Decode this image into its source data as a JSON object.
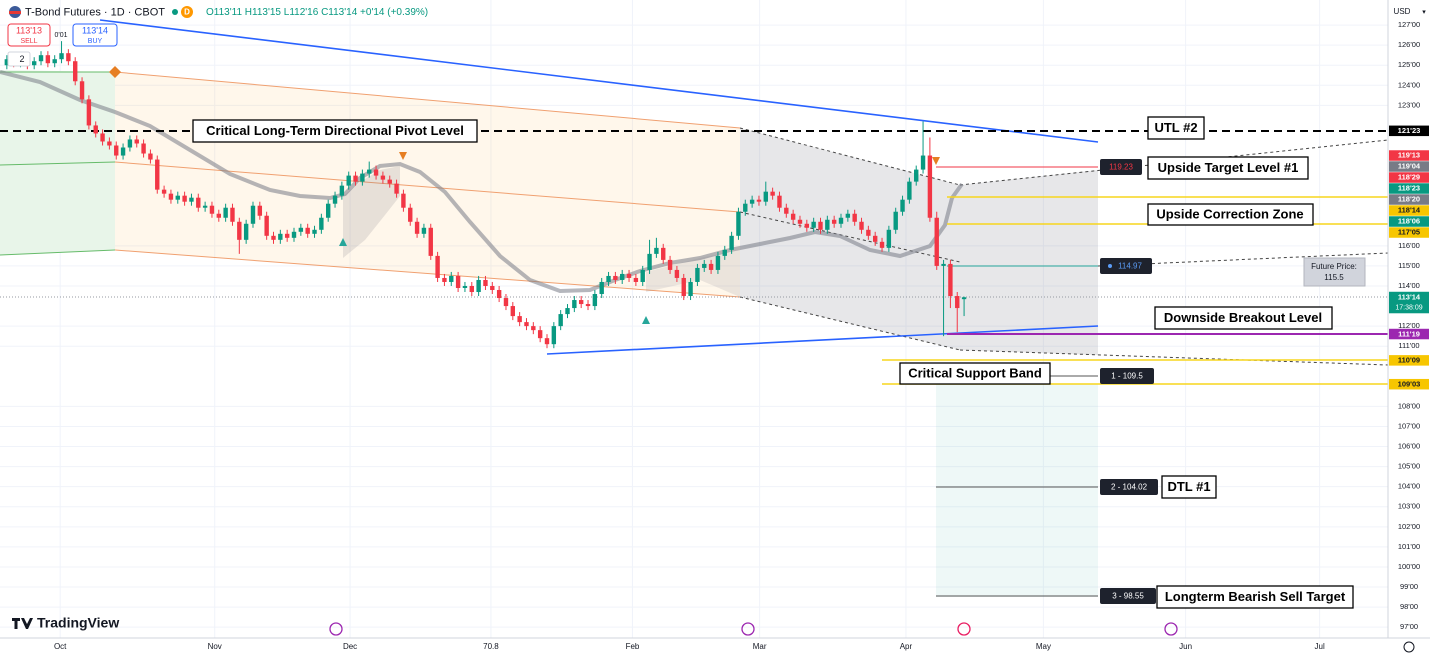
{
  "header": {
    "symbol": "T-Bond Futures · 1D · CBOT",
    "badge": "D",
    "ohlc": "O113'11 H113'15 L112'16 C113'14 +0'14 (+0.39%)",
    "sell_price": "113'13",
    "sell": "SELL",
    "buy_price": "113'14",
    "buy": "BUY",
    "spread": "0'01",
    "indicators": "2"
  },
  "currency": "USD",
  "logo": "TradingView",
  "chart_data": {
    "type": "candlestick",
    "xlim": [
      -1,
      202
    ],
    "ylim": [
      96.46,
      128.25
    ],
    "xticks": [
      {
        "value": 7.8,
        "label": "Oct"
      },
      {
        "value": 30.4,
        "label": "Nov"
      },
      {
        "value": 50.2,
        "label": "Dec"
      },
      70.8,
      {
        "value": 91.5,
        "label": "Feb"
      },
      {
        "value": 110.1,
        "label": "Mar"
      },
      {
        "value": 131.5,
        "label": "Apr"
      },
      {
        "value": 151.6,
        "label": "May"
      },
      {
        "value": 172.4,
        "label": "Jun"
      },
      {
        "value": 192,
        "label": "Jul"
      }
    ],
    "yticks": [
      {
        "value": 127,
        "label": "127'00"
      },
      {
        "value": 126,
        "label": "126'00"
      },
      {
        "value": 125,
        "label": "125'00"
      },
      {
        "value": 124,
        "label": "124'00"
      },
      {
        "value": 123,
        "label": "123'00"
      },
      {
        "value": 116,
        "label": "116'00"
      },
      {
        "value": 115,
        "label": "115'00"
      },
      {
        "value": 114,
        "label": "114'00"
      },
      {
        "value": 112,
        "label": "112'00"
      },
      {
        "value": 111,
        "label": "111'00"
      },
      {
        "value": 108,
        "label": "108'00"
      },
      {
        "value": 107,
        "label": "107'00"
      },
      {
        "value": 106,
        "label": "106'00"
      },
      {
        "value": 105,
        "label": "105'00"
      },
      {
        "value": 104,
        "label": "104'00"
      },
      {
        "value": 103,
        "label": "103'00"
      },
      {
        "value": 102,
        "label": "102'00"
      },
      {
        "value": 101,
        "label": "101'00"
      },
      {
        "value": 100,
        "label": "100'00"
      },
      {
        "value": 99,
        "label": "99'00"
      },
      {
        "value": 98,
        "label": "98'00"
      },
      {
        "value": 97,
        "label": "97'00"
      }
    ],
    "grid": true,
    "up_color": "#089981",
    "down_color": "#f23645",
    "open": [
      125.0,
      125.3,
      125.1,
      125.4,
      125.0,
      125.2,
      125.5,
      125.1,
      125.3,
      125.6,
      125.2,
      124.2,
      123.3,
      122.0,
      121.6,
      121.2,
      121.0,
      120.5,
      120.9,
      121.3,
      121.1,
      120.6,
      120.3,
      118.8,
      118.6,
      118.3,
      118.5,
      118.2,
      118.4,
      117.9,
      118.0,
      117.6,
      117.4,
      117.9,
      117.2,
      116.3,
      117.1,
      118.0,
      117.5,
      116.5,
      116.3,
      116.6,
      116.4,
      116.7,
      116.9,
      116.6,
      116.8,
      117.4,
      118.1,
      118.5,
      119.0,
      119.5,
      119.2,
      119.6,
      119.8,
      119.5,
      119.3,
      119.1,
      118.6,
      117.9,
      117.2,
      116.6,
      116.9,
      115.5,
      114.4,
      114.2,
      114.5,
      113.9,
      114.0,
      113.7,
      114.3,
      114.0,
      113.8,
      113.4,
      113.0,
      112.5,
      112.2,
      112.0,
      111.8,
      111.4,
      111.1,
      112.0,
      112.6,
      112.9,
      113.3,
      113.1,
      113.0,
      113.6,
      114.2,
      114.5,
      114.3,
      114.6,
      114.4,
      114.2,
      114.8,
      115.6,
      115.9,
      115.3,
      114.8,
      114.4,
      113.5,
      114.2,
      114.9,
      115.1,
      114.8,
      115.5,
      115.8,
      116.5,
      117.7,
      118.1,
      118.3,
      118.2,
      118.7,
      118.5,
      117.9,
      117.6,
      117.3,
      117.1,
      116.9,
      117.2,
      116.8,
      117.3,
      117.1,
      117.4,
      117.6,
      117.2,
      116.8,
      116.5,
      116.2,
      115.9,
      116.8,
      117.7,
      118.3,
      119.2,
      119.8,
      120.5,
      117.4,
      115.0,
      115.1,
      113.5,
      113.34375
    ],
    "high": [
      125.5,
      125.5,
      125.6,
      125.6,
      125.4,
      125.7,
      125.7,
      125.5,
      126.2,
      125.8,
      125.4,
      124.4,
      123.5,
      122.2,
      121.8,
      121.4,
      121.2,
      121.1,
      121.5,
      121.5,
      121.3,
      120.8,
      120.5,
      119.0,
      118.8,
      118.7,
      118.7,
      118.6,
      118.6,
      118.2,
      118.2,
      117.8,
      118.1,
      118.1,
      117.4,
      117.3,
      118.2,
      118.2,
      117.7,
      116.7,
      116.8,
      116.8,
      116.9,
      117.1,
      117.1,
      117.0,
      117.6,
      118.3,
      118.7,
      119.2,
      119.7,
      119.7,
      119.8,
      120.2,
      120.0,
      119.7,
      119.5,
      119.3,
      118.8,
      118.1,
      117.4,
      117.1,
      117.1,
      115.7,
      114.6,
      114.7,
      114.7,
      114.2,
      114.2,
      114.5,
      114.5,
      114.2,
      114.0,
      113.6,
      113.2,
      112.7,
      112.4,
      112.2,
      112.0,
      111.6,
      112.2,
      112.8,
      113.1,
      113.5,
      113.5,
      113.3,
      113.8,
      114.4,
      114.7,
      114.7,
      114.8,
      114.8,
      114.6,
      115.0,
      116.3,
      116.4,
      116.1,
      115.5,
      115.0,
      114.6,
      114.4,
      115.1,
      115.3,
      115.3,
      115.7,
      116.0,
      116.7,
      117.9,
      118.3,
      118.5,
      118.5,
      119.2,
      118.9,
      118.7,
      118.1,
      117.8,
      117.5,
      117.3,
      117.4,
      117.4,
      117.5,
      117.5,
      117.6,
      117.8,
      117.8,
      117.4,
      117.0,
      116.7,
      116.4,
      117.0,
      117.9,
      118.5,
      119.4,
      120.0,
      122.2,
      121.4,
      117.7,
      115.3,
      115.3,
      113.7,
      113.46875
    ],
    "low": [
      124.8,
      124.9,
      124.9,
      124.8,
      124.8,
      125.0,
      124.9,
      124.9,
      125.1,
      125.0,
      124.0,
      123.1,
      121.8,
      121.4,
      121.0,
      120.8,
      120.3,
      120.3,
      120.7,
      120.9,
      120.4,
      120.1,
      118.6,
      118.4,
      118.1,
      118.1,
      118.0,
      118.0,
      117.7,
      117.7,
      117.4,
      117.2,
      117.2,
      117.0,
      115.6,
      116.1,
      116.9,
      117.3,
      116.3,
      116.1,
      116.1,
      116.2,
      116.2,
      116.5,
      116.4,
      116.4,
      116.6,
      117.2,
      117.9,
      118.3,
      118.8,
      119.0,
      119.0,
      119.4,
      119.3,
      119.1,
      118.9,
      118.4,
      117.7,
      117.0,
      116.4,
      116.4,
      115.3,
      114.2,
      114.0,
      114.0,
      113.7,
      113.7,
      113.5,
      113.5,
      113.8,
      113.6,
      113.2,
      112.8,
      112.3,
      112.0,
      111.8,
      111.6,
      111.2,
      110.9,
      110.9,
      111.8,
      112.4,
      112.7,
      112.9,
      112.8,
      112.8,
      113.4,
      114.0,
      114.1,
      114.1,
      114.2,
      114.0,
      114.0,
      114.6,
      115.4,
      115.1,
      114.6,
      114.2,
      113.3,
      113.3,
      114.0,
      114.7,
      114.6,
      114.6,
      115.3,
      115.6,
      116.3,
      117.5,
      117.9,
      118.0,
      118.0,
      118.3,
      117.7,
      117.4,
      117.1,
      116.9,
      116.7,
      116.7,
      116.6,
      116.6,
      116.9,
      116.9,
      117.2,
      117.0,
      116.6,
      116.3,
      116.0,
      115.7,
      115.7,
      116.6,
      117.5,
      118.1,
      119.0,
      119.6,
      117.2,
      114.8,
      111.5,
      112.9,
      111.7,
      112.5
    ],
    "close": [
      125.3,
      125.1,
      125.4,
      125.0,
      125.2,
      125.5,
      125.1,
      125.3,
      125.6,
      125.2,
      124.2,
      123.3,
      122.0,
      121.6,
      121.2,
      121.0,
      120.5,
      120.9,
      121.3,
      121.1,
      120.6,
      120.3,
      118.8,
      118.6,
      118.3,
      118.5,
      118.2,
      118.4,
      117.9,
      118.0,
      117.6,
      117.4,
      117.9,
      117.2,
      116.3,
      117.1,
      118.0,
      117.5,
      116.5,
      116.3,
      116.6,
      116.4,
      116.7,
      116.9,
      116.6,
      116.8,
      117.4,
      118.1,
      118.5,
      119.0,
      119.5,
      119.2,
      119.6,
      119.8,
      119.5,
      119.3,
      119.1,
      118.6,
      117.9,
      117.2,
      116.6,
      116.9,
      115.5,
      114.4,
      114.2,
      114.5,
      113.9,
      114.0,
      113.7,
      114.3,
      114.0,
      113.8,
      113.4,
      113.0,
      112.5,
      112.2,
      112.0,
      111.8,
      111.4,
      111.1,
      112.0,
      112.6,
      112.9,
      113.3,
      113.1,
      113.0,
      113.6,
      114.2,
      114.5,
      114.3,
      114.6,
      114.4,
      114.2,
      114.8,
      115.6,
      115.9,
      115.3,
      114.8,
      114.4,
      113.5,
      114.2,
      114.9,
      115.1,
      114.8,
      115.5,
      115.8,
      116.5,
      117.7,
      118.1,
      118.3,
      118.2,
      118.7,
      118.5,
      117.9,
      117.6,
      117.3,
      117.1,
      116.9,
      117.2,
      116.8,
      117.3,
      117.1,
      117.4,
      117.6,
      117.2,
      116.8,
      116.5,
      116.2,
      115.9,
      116.8,
      117.7,
      118.3,
      119.2,
      119.8,
      120.5,
      117.4,
      115.0,
      115.1,
      113.5,
      112.9,
      113.4375
    ],
    "price_labels": [
      {
        "value": 121.71875,
        "label": "121'23",
        "color": "#000000"
      },
      {
        "value": 119.40625,
        "label": "119'13",
        "color": "#f23645"
      },
      {
        "value": 119.125,
        "label": "119'04",
        "color": "#787b86"
      },
      {
        "value": 118.90625,
        "label": "118'29",
        "color": "#f23645"
      },
      {
        "value": 118.71875,
        "label": "118'23",
        "color": "#089981"
      },
      {
        "value": 118.625,
        "label": "118'20",
        "color": "#787b86"
      },
      {
        "value": 118.4375,
        "label": "118'14",
        "color": "#f7c600"
      },
      {
        "value": 118.1875,
        "label": "118'06",
        "color": "#089981"
      },
      {
        "value": 117.15625,
        "label": "117'05",
        "color": "#f7c600"
      },
      {
        "value": 113.4375,
        "label": "113'14",
        "color": "#089981",
        "countdown": "17:38:09"
      },
      {
        "value": 111.59375,
        "label": "111'19",
        "color": "#9c27b0"
      },
      {
        "value": 110.28125,
        "label": "110'09",
        "color": "#f7c600"
      },
      {
        "value": 109.09375,
        "label": "109'03",
        "color": "#f7c600"
      }
    ],
    "annotations": [
      "Critical Long-Term Directional Pivot Level",
      "UTL #2",
      "Upside Target Level #1",
      "Upside Correction Zone",
      "Downside Breakout Level",
      "Critical Support Band",
      "DTL #1",
      "Longterm Bearish Sell Target"
    ],
    "level_tags": [
      "119.23",
      "114.97",
      "1 - 109.5",
      "2 - 104.02",
      "3 - 98.55"
    ],
    "future_price": {
      "label": "Future Price:",
      "value_label": "115.5"
    }
  }
}
